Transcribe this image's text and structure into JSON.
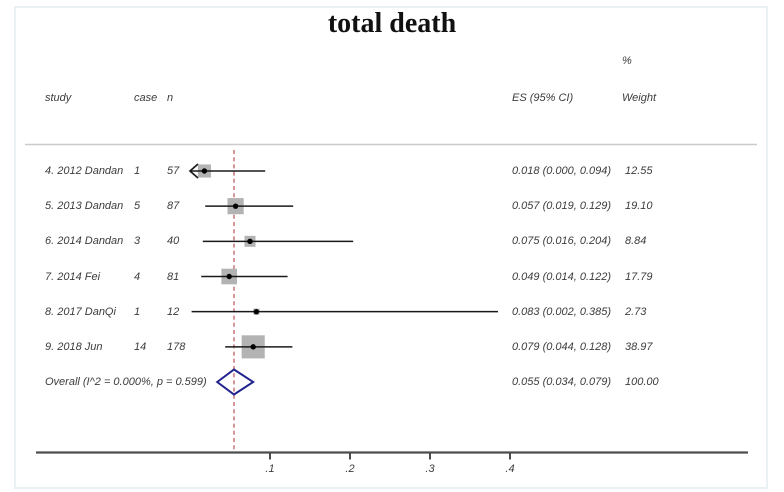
{
  "title": "total death",
  "columns": {
    "study": "study",
    "case": "case",
    "n": "n",
    "percent": "%",
    "es_ci": "ES (95% CI)",
    "weight": "Weight"
  },
  "chart_data": {
    "type": "forest",
    "title": "total death",
    "x_axis": {
      "range": [
        0,
        0.45
      ],
      "ticks": [
        0.1,
        0.2,
        0.3,
        0.4
      ],
      "tick_labels": [
        ".1",
        ".2",
        ".3",
        ".4"
      ]
    },
    "null_line_value": 0.055,
    "studies": [
      {
        "study": "4. 2012 Dandan",
        "case": "1",
        "n": "57",
        "es": 0.018,
        "ci_low": 0.0,
        "ci_high": 0.094,
        "weight": 12.55,
        "es_text": "0.018 (0.000, 0.094)",
        "weight_text": "12.55",
        "arrow_left": true
      },
      {
        "study": "5. 2013 Dandan",
        "case": "5",
        "n": "87",
        "es": 0.057,
        "ci_low": 0.019,
        "ci_high": 0.129,
        "weight": 19.1,
        "es_text": "0.057 (0.019, 0.129)",
        "weight_text": "19.10",
        "arrow_left": false
      },
      {
        "study": "6. 2014 Dandan",
        "case": "3",
        "n": "40",
        "es": 0.075,
        "ci_low": 0.016,
        "ci_high": 0.204,
        "weight": 8.84,
        "es_text": "0.075 (0.016, 0.204)",
        "weight_text": "8.84",
        "arrow_left": false
      },
      {
        "study": "7. 2014 Fei",
        "case": "4",
        "n": "81",
        "es": 0.049,
        "ci_low": 0.014,
        "ci_high": 0.122,
        "weight": 17.79,
        "es_text": "0.049 (0.014, 0.122)",
        "weight_text": "17.79",
        "arrow_left": false
      },
      {
        "study": "8. 2017 DanQi",
        "case": "1",
        "n": "12",
        "es": 0.083,
        "ci_low": 0.002,
        "ci_high": 0.385,
        "weight": 2.73,
        "es_text": "0.083 (0.002, 0.385)",
        "weight_text": "2.73",
        "arrow_left": false
      },
      {
        "study": "9. 2018 Jun",
        "case": "14",
        "n": "178",
        "es": 0.079,
        "ci_low": 0.044,
        "ci_high": 0.128,
        "weight": 38.97,
        "es_text": "0.079 (0.044, 0.128)",
        "weight_text": "38.97",
        "arrow_left": false
      }
    ],
    "overall": {
      "label": "Overall  (I^2 = 0.000%, p = 0.599)",
      "es": 0.055,
      "ci_low": 0.034,
      "ci_high": 0.079,
      "es_text": "0.055 (0.034, 0.079)",
      "weight_text": "100.00"
    }
  },
  "colors": {
    "diamond": "#23238e",
    "null_line": "#c26a6a",
    "square": "#b3b3b3",
    "ci_line": "#1a1a1a",
    "axis": "#4d4d4d",
    "separator": "#cbcbcb"
  }
}
